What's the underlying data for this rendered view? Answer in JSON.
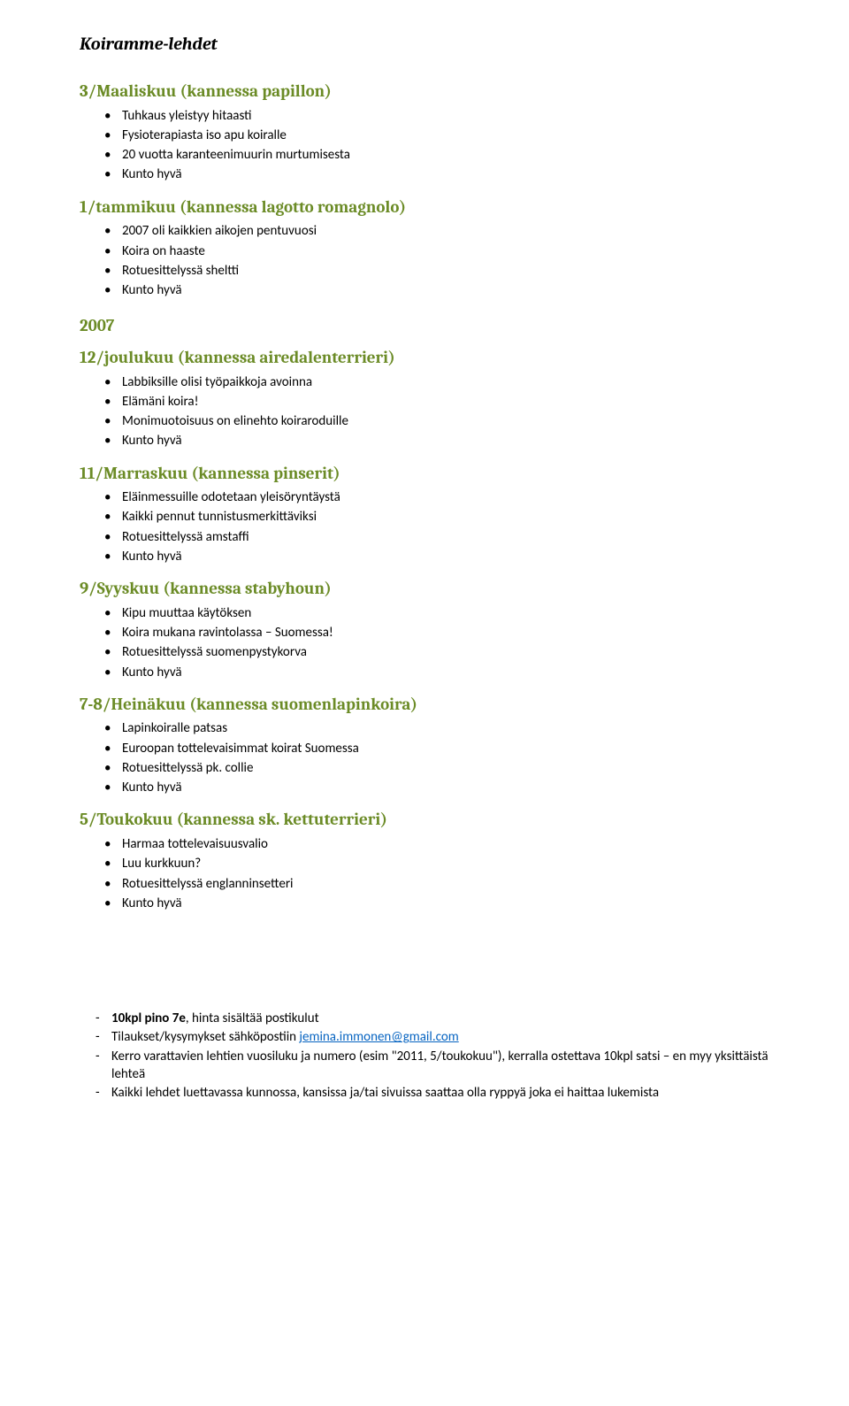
{
  "doc_title": "Koiramme-lehdet",
  "sections": [
    {
      "heading": "3/Maaliskuu (kannessa papillon)",
      "items": [
        "Tuhkaus yleistyy hitaasti",
        "Fysioterapiasta iso apu koiralle",
        "20 vuotta karanteenimuurin murtumisesta",
        "Kunto hyvä"
      ]
    },
    {
      "heading": "1/tammikuu (kannessa lagotto romagnolo)",
      "items": [
        "2007 oli kaikkien aikojen pentuvuosi",
        "Koira on haaste",
        "Rotuesittelyssä sheltti",
        "Kunto hyvä"
      ]
    }
  ],
  "year": "2007",
  "year_sections": [
    {
      "heading": "12/joulukuu (kannessa airedalenterrieri)",
      "items": [
        "Labbiksille olisi työpaikkoja avoinna",
        "Elämäni koira!",
        "Monimuotoisuus on elinehto koiraroduille",
        "Kunto hyvä"
      ]
    },
    {
      "heading": "11/Marraskuu (kannessa pinserit)",
      "items": [
        "Eläinmessuille odotetaan yleisöryntäystä",
        "Kaikki pennut tunnistusmerkittäviksi",
        "Rotuesittelyssä amstaffi",
        "Kunto hyvä"
      ]
    },
    {
      "heading": "9/Syyskuu (kannessa stabyhoun)",
      "items": [
        "Kipu muuttaa käytöksen",
        "Koira mukana ravintolassa – Suomessa!",
        "Rotuesittelyssä suomenpystykorva",
        "Kunto hyvä"
      ]
    },
    {
      "heading": "7-8/Heinäkuu (kannessa suomenlapinkoira)",
      "items": [
        "Lapinkoiralle patsas",
        "Euroopan tottelevaisimmat koirat Suomessa",
        "Rotuesittelyssä pk. collie",
        "Kunto hyvä"
      ]
    },
    {
      "heading": "5/Toukokuu (kannessa sk. kettuterrieri)",
      "items": [
        "Harmaa tottelevaisuusvalio",
        "Luu kurkkuun?",
        "Rotuesittelyssä englanninsetteri",
        "Kunto hyvä"
      ]
    }
  ],
  "footer": {
    "line1_bold": "10kpl pino 7e",
    "line1_rest": ", hinta sisältää postikulut",
    "line2_pre": "Tilaukset/kysymykset sähköpostiin ",
    "line2_link": "jemina.immonen@gmail.com",
    "line3": "Kerro varattavien lehtien vuosiluku ja numero (esim \"2011, 5/toukokuu\"), kerralla ostettava 10kpl satsi – en myy yksittäistä lehteä",
    "line4": "Kaikki lehdet luettavassa kunnossa, kansissa ja/tai sivuissa saattaa olla ryppyä joka ei haittaa lukemista"
  },
  "colors": {
    "heading": "#6b8b26",
    "link": "#0563c1",
    "text": "#000000",
    "bg": "#ffffff"
  }
}
